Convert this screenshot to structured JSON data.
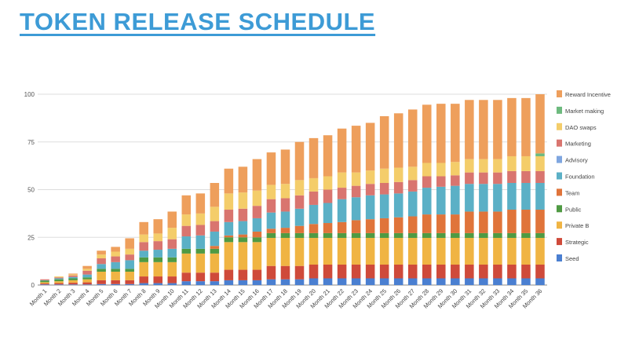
{
  "chart_data": {
    "type": "bar",
    "stacked": true,
    "title": "TOKEN RELEASE SCHEDULE",
    "xlabel": "",
    "ylabel": "",
    "ylim": [
      0,
      100
    ],
    "yticks": [
      0,
      25,
      50,
      75,
      100
    ],
    "grid": true,
    "legend_position": "right",
    "categories": [
      "Month 1",
      "Month 2",
      "Month 3",
      "Month 4",
      "Month 5",
      "Month 6",
      "Month 7",
      "Month 8",
      "Month 9",
      "Month 10",
      "Month 11",
      "Month 12",
      "Month 13",
      "Month 14",
      "Month 15",
      "Month 16",
      "Month 17",
      "Month 18",
      "Month 19",
      "Month 20",
      "Month 21",
      "Month 22",
      "Month 23",
      "Month 24",
      "Month 25",
      "Month 26",
      "Month 27",
      "Month 28",
      "Month 29",
      "Month 30",
      "Month 31",
      "Month 32",
      "Month 33",
      "Month 34",
      "Month 35",
      "Month 36"
    ],
    "series": [
      {
        "name": "Seed",
        "color": "#4a7fd1",
        "values": [
          0.3,
          0.3,
          0.3,
          0.3,
          0.5,
          0.5,
          0.5,
          1,
          1,
          1,
          2,
          2,
          2,
          2.5,
          2.5,
          2.5,
          3,
          3,
          3,
          3.5,
          3.5,
          3.5,
          3.5,
          3.5,
          3.5,
          3.5,
          3.5,
          3.5,
          3.5,
          3.5,
          3.5,
          3.5,
          3.5,
          3.5,
          3.5,
          3.5
        ]
      },
      {
        "name": "Strategic",
        "color": "#cf4a3a",
        "values": [
          0.5,
          0.7,
          0.9,
          1.1,
          2,
          2,
          2,
          3.5,
          3.5,
          3.5,
          4.5,
          4.5,
          4.5,
          5.5,
          5.5,
          5.5,
          7,
          7,
          7,
          7.2,
          7.2,
          7.2,
          7.2,
          7.2,
          7.2,
          7.2,
          7.2,
          7.2,
          7.2,
          7.2,
          7.2,
          7.2,
          7.2,
          7.2,
          7.2,
          7.2
        ]
      },
      {
        "name": "Private B",
        "color": "#f0b443",
        "values": [
          0.7,
          1,
          1.3,
          1.6,
          4.5,
          4.5,
          4.5,
          7.5,
          7.5,
          7.5,
          10,
          10,
          10,
          14.5,
          14.5,
          14.5,
          14.7,
          14.7,
          14.7,
          14,
          14,
          14,
          14,
          14,
          14,
          14,
          14,
          14,
          14,
          14,
          14,
          14,
          14,
          14,
          14,
          14
        ]
      },
      {
        "name": "Public",
        "color": "#4f9a43",
        "values": [
          0.8,
          1,
          1,
          1,
          1.5,
          1.5,
          1.5,
          2.5,
          2.5,
          2.5,
          2.5,
          2.5,
          2.5,
          2.5,
          2.5,
          2.5,
          2.5,
          2.5,
          2.5,
          2.5,
          2.5,
          2.5,
          2.5,
          2.5,
          2.5,
          2.5,
          2.5,
          2.5,
          2.5,
          2.5,
          2.5,
          2.5,
          2.5,
          2.5,
          2.5,
          2.5
        ]
      },
      {
        "name": "Team",
        "color": "#e0743a",
        "values": [
          0,
          0,
          0,
          0,
          0,
          0,
          0,
          0,
          0,
          0,
          0,
          0,
          1.5,
          1,
          1.5,
          3,
          2.3,
          2.8,
          3.8,
          4.8,
          5.3,
          5.8,
          6.8,
          7.3,
          7.8,
          8.3,
          8.8,
          9.8,
          9.8,
          9.8,
          11.3,
          11.3,
          11.3,
          12.3,
          12.3,
          12.3
        ]
      },
      {
        "name": "Foundation",
        "color": "#5bb0c6",
        "values": [
          0.2,
          0.5,
          0.7,
          1.5,
          2.5,
          3.5,
          4.5,
          3.5,
          4,
          4.5,
          6.5,
          7,
          7.5,
          7,
          7,
          7,
          8.5,
          8.5,
          9,
          10,
          10.5,
          12,
          12,
          12.5,
          12.5,
          12.5,
          13,
          14,
          14.5,
          15,
          14.5,
          14.5,
          14.5,
          14,
          14,
          14
        ]
      },
      {
        "name": "Advisory",
        "color": "#7fa6e0",
        "values": [
          0,
          0,
          0,
          0,
          0,
          0,
          0,
          0,
          0,
          0,
          0,
          0,
          0,
          0,
          0,
          0,
          0,
          0,
          0,
          0,
          0,
          0,
          0,
          0,
          0,
          0,
          0,
          0,
          0,
          0,
          0,
          0,
          0,
          0,
          0,
          0
        ]
      },
      {
        "name": "Marketing",
        "color": "#d9756f",
        "values": [
          0.5,
          0.5,
          0.8,
          2,
          3,
          3,
          3,
          4.5,
          4.5,
          5,
          5.5,
          5.5,
          5.5,
          6.5,
          6.5,
          6.5,
          7,
          7,
          7,
          7,
          7,
          6,
          6,
          6,
          6,
          6,
          6,
          6,
          5.5,
          5.5,
          6,
          6,
          6,
          6.2,
          6.2,
          6.2
        ]
      },
      {
        "name": "DAO swaps",
        "color": "#f4cd6a",
        "values": [
          0,
          0.5,
          0.5,
          1,
          2,
          2.5,
          3,
          4,
          4,
          6,
          6,
          6,
          7.5,
          8.5,
          8.5,
          8,
          7.5,
          7.5,
          8,
          7,
          7,
          8,
          7,
          7,
          7.5,
          7.5,
          7,
          7,
          7,
          7,
          7,
          7,
          7,
          7.8,
          7.8,
          7.8
        ]
      },
      {
        "name": "Market making",
        "color": "#6dba7e",
        "values": [
          0,
          0,
          0,
          0,
          0,
          0,
          0,
          0,
          0,
          0,
          0,
          0,
          0,
          0,
          0,
          0,
          0,
          0,
          0,
          0,
          0,
          0,
          0,
          0,
          0,
          0,
          0,
          0,
          0,
          0,
          0,
          0,
          0,
          0,
          0,
          1.5
        ]
      },
      {
        "name": "Reward Incentive",
        "color": "#ee9f5c",
        "values": [
          0,
          0,
          0.5,
          1.5,
          2,
          2.5,
          5.5,
          6.5,
          7.5,
          8.5,
          10,
          10.5,
          12.5,
          13,
          13.5,
          16.5,
          17,
          18,
          20,
          21,
          21.5,
          23,
          24.5,
          25,
          27.5,
          28.5,
          30,
          30.5,
          31,
          30.5,
          31,
          31,
          31,
          30.5,
          30.5,
          31
        ]
      }
    ]
  }
}
